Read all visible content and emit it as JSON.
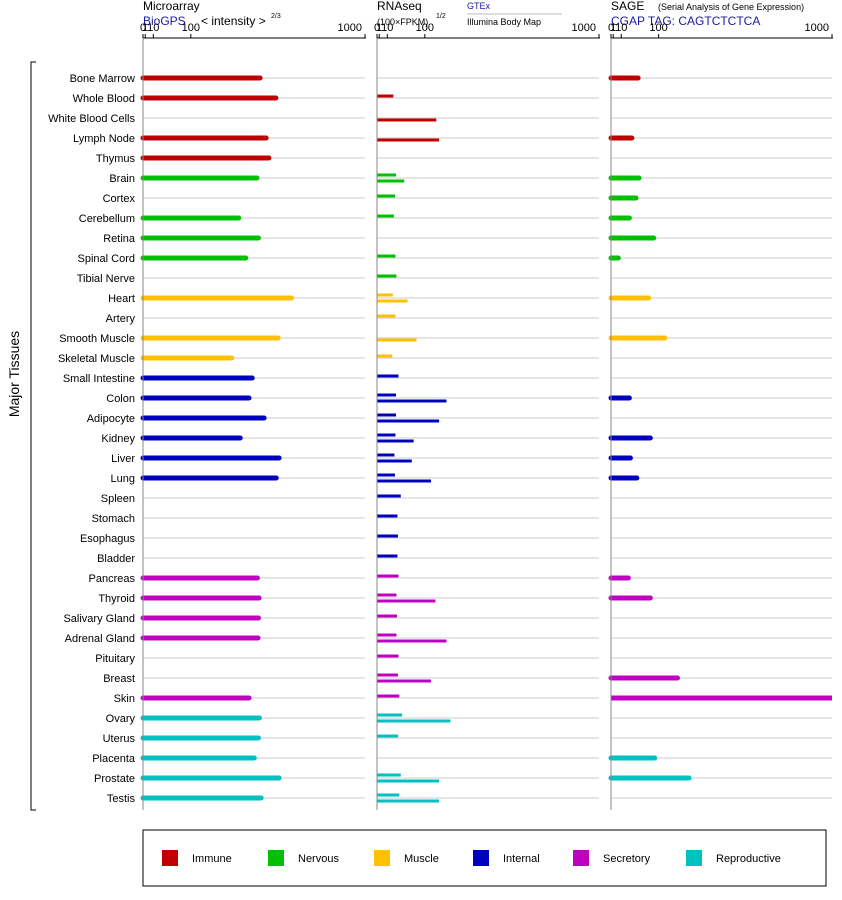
{
  "side_label": "Major Tissues",
  "panels": [
    {
      "title": "Microarray",
      "subtitle": "BioGPS",
      "scale_note": "< intensity >",
      "scale_exp": "2/3",
      "ticks": [
        "0",
        "1",
        "10",
        "100",
        "1000"
      ]
    },
    {
      "title": "RNAseq",
      "subtitle": "(100×FPKM)",
      "subtitle_exp": "1/2",
      "series_labels": [
        "GTEx",
        "Illumina Body Map"
      ],
      "ticks": [
        "0",
        "1",
        "10",
        "100",
        "1000"
      ]
    },
    {
      "title": "SAGE",
      "title_note": "(Serial Analysis of Gene Expression)",
      "subtitle": "CGAP  TAG: CAGTCTCTCA",
      "ticks": [
        "0",
        "1",
        "10",
        "100",
        "1000"
      ]
    }
  ],
  "legend": [
    {
      "label": "Immune",
      "color": "#c00000"
    },
    {
      "label": "Nervous",
      "color": "#00c000"
    },
    {
      "label": "Muscle",
      "color": "#ffc000"
    },
    {
      "label": "Internal",
      "color": "#0000c0"
    },
    {
      "label": "Secretory",
      "color": "#c000c0"
    },
    {
      "label": "Reproductive",
      "color": "#00c0c0"
    }
  ],
  "chart_data": {
    "type": "bar",
    "orientation": "horizontal",
    "scale": "x^(2/3) (tick labels 0,1,10,100,1000)",
    "xlim": [
      0,
      1000
    ],
    "grid": true,
    "legend_position": "bottom",
    "categories": [
      "Bone Marrow",
      "Whole Blood",
      "White Blood Cells",
      "Lymph Node",
      "Thymus",
      "Brain",
      "Cortex",
      "Cerebellum",
      "Retina",
      "Spinal Cord",
      "Tibial Nerve",
      "Heart",
      "Artery",
      "Smooth Muscle",
      "Skeletal Muscle",
      "Small Intestine",
      "Colon",
      "Adipocyte",
      "Kidney",
      "Liver",
      "Lung",
      "Spleen",
      "Stomach",
      "Esophagus",
      "Bladder",
      "Pancreas",
      "Thyroid",
      "Salivary Gland",
      "Adrenal Gland",
      "Pituitary",
      "Breast",
      "Skin",
      "Ovary",
      "Uterus",
      "Placenta",
      "Prostate",
      "Testis"
    ],
    "groups": [
      "Immune",
      "Immune",
      "Immune",
      "Immune",
      "Immune",
      "Nervous",
      "Nervous",
      "Nervous",
      "Nervous",
      "Nervous",
      "Nervous",
      "Muscle",
      "Muscle",
      "Muscle",
      "Muscle",
      "Internal",
      "Internal",
      "Internal",
      "Internal",
      "Internal",
      "Internal",
      "Internal",
      "Internal",
      "Internal",
      "Internal",
      "Secretory",
      "Secretory",
      "Secretory",
      "Secretory",
      "Secretory",
      "Secretory",
      "Secretory",
      "Reproductive",
      "Reproductive",
      "Reproductive",
      "Reproductive",
      "Reproductive"
    ],
    "microarray": [
      383,
      463,
      null,
      413,
      427,
      368,
      null,
      283,
      375,
      315,
      null,
      547,
      null,
      475,
      253,
      345,
      330,
      403,
      290,
      480,
      465,
      null,
      null,
      null,
      null,
      370,
      378,
      375,
      373,
      null,
      null,
      330,
      380,
      375,
      355,
      480,
      388
    ],
    "rnaseq_gtex": [
      null,
      20,
      null,
      null,
      null,
      25,
      23,
      21,
      null,
      24,
      26,
      19,
      24,
      null,
      18,
      30,
      25,
      25,
      24,
      22,
      23,
      35,
      28,
      29,
      28,
      30,
      26,
      27,
      26,
      30,
      29,
      32,
      38,
      29,
      null,
      35,
      32
    ],
    "rnaseq_ibm": [
      null,
      null,
      138,
      148,
      null,
      43,
      null,
      null,
      null,
      null,
      null,
      51,
      null,
      75,
      null,
      null,
      175,
      148,
      67,
      62,
      120,
      null,
      null,
      null,
      null,
      null,
      135,
      null,
      175,
      null,
      120,
      null,
      190,
      null,
      null,
      148,
      148
    ],
    "sage": [
      43,
      null,
      null,
      29,
      null,
      45,
      38,
      24,
      85,
      6,
      null,
      70,
      null,
      120,
      null,
      null,
      24,
      null,
      75,
      26,
      40,
      null,
      null,
      null,
      null,
      22,
      75,
      null,
      null,
      null,
      165,
      1000,
      null,
      null,
      88,
      210,
      null
    ]
  }
}
